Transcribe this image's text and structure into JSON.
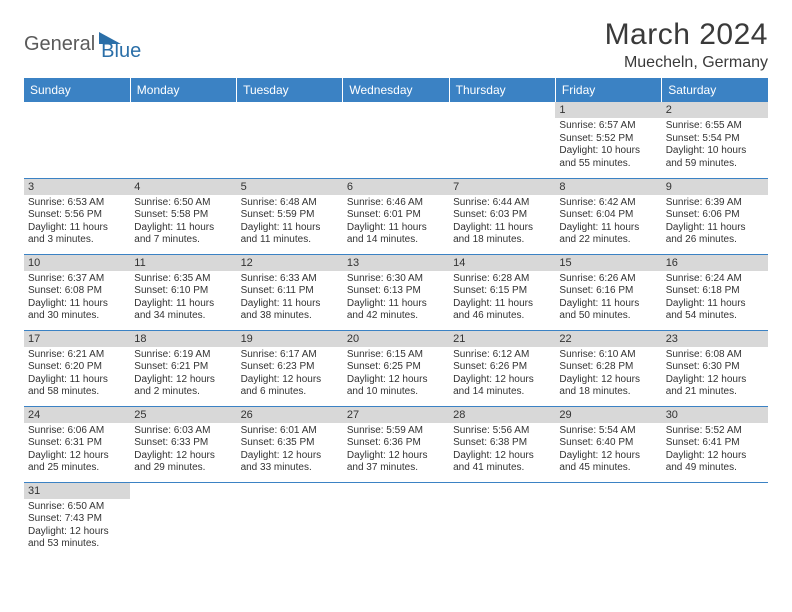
{
  "logo": {
    "word1": "General",
    "word2": "Blue",
    "shape_color": "#2b6fa8",
    "text1_color": "#5a5a5a",
    "text2_color": "#2b6fa8"
  },
  "title": "March 2024",
  "location": "Muecheln, Germany",
  "header_bg": "#3b82c4",
  "header_fg": "#ffffff",
  "daynum_bg": "#d8d8d8",
  "border_color": "#3b82c4",
  "text_color": "#333333",
  "font_size_title": 30,
  "font_size_location": 16,
  "font_size_header": 12,
  "font_size_daynum": 11,
  "font_size_body": 10,
  "weekdays": [
    "Sunday",
    "Monday",
    "Tuesday",
    "Wednesday",
    "Thursday",
    "Friday",
    "Saturday"
  ],
  "weeks": [
    [
      null,
      null,
      null,
      null,
      null,
      {
        "n": "1",
        "sr": "Sunrise: 6:57 AM",
        "ss": "Sunset: 5:52 PM",
        "dl1": "Daylight: 10 hours",
        "dl2": "and 55 minutes."
      },
      {
        "n": "2",
        "sr": "Sunrise: 6:55 AM",
        "ss": "Sunset: 5:54 PM",
        "dl1": "Daylight: 10 hours",
        "dl2": "and 59 minutes."
      }
    ],
    [
      {
        "n": "3",
        "sr": "Sunrise: 6:53 AM",
        "ss": "Sunset: 5:56 PM",
        "dl1": "Daylight: 11 hours",
        "dl2": "and 3 minutes."
      },
      {
        "n": "4",
        "sr": "Sunrise: 6:50 AM",
        "ss": "Sunset: 5:58 PM",
        "dl1": "Daylight: 11 hours",
        "dl2": "and 7 minutes."
      },
      {
        "n": "5",
        "sr": "Sunrise: 6:48 AM",
        "ss": "Sunset: 5:59 PM",
        "dl1": "Daylight: 11 hours",
        "dl2": "and 11 minutes."
      },
      {
        "n": "6",
        "sr": "Sunrise: 6:46 AM",
        "ss": "Sunset: 6:01 PM",
        "dl1": "Daylight: 11 hours",
        "dl2": "and 14 minutes."
      },
      {
        "n": "7",
        "sr": "Sunrise: 6:44 AM",
        "ss": "Sunset: 6:03 PM",
        "dl1": "Daylight: 11 hours",
        "dl2": "and 18 minutes."
      },
      {
        "n": "8",
        "sr": "Sunrise: 6:42 AM",
        "ss": "Sunset: 6:04 PM",
        "dl1": "Daylight: 11 hours",
        "dl2": "and 22 minutes."
      },
      {
        "n": "9",
        "sr": "Sunrise: 6:39 AM",
        "ss": "Sunset: 6:06 PM",
        "dl1": "Daylight: 11 hours",
        "dl2": "and 26 minutes."
      }
    ],
    [
      {
        "n": "10",
        "sr": "Sunrise: 6:37 AM",
        "ss": "Sunset: 6:08 PM",
        "dl1": "Daylight: 11 hours",
        "dl2": "and 30 minutes."
      },
      {
        "n": "11",
        "sr": "Sunrise: 6:35 AM",
        "ss": "Sunset: 6:10 PM",
        "dl1": "Daylight: 11 hours",
        "dl2": "and 34 minutes."
      },
      {
        "n": "12",
        "sr": "Sunrise: 6:33 AM",
        "ss": "Sunset: 6:11 PM",
        "dl1": "Daylight: 11 hours",
        "dl2": "and 38 minutes."
      },
      {
        "n": "13",
        "sr": "Sunrise: 6:30 AM",
        "ss": "Sunset: 6:13 PM",
        "dl1": "Daylight: 11 hours",
        "dl2": "and 42 minutes."
      },
      {
        "n": "14",
        "sr": "Sunrise: 6:28 AM",
        "ss": "Sunset: 6:15 PM",
        "dl1": "Daylight: 11 hours",
        "dl2": "and 46 minutes."
      },
      {
        "n": "15",
        "sr": "Sunrise: 6:26 AM",
        "ss": "Sunset: 6:16 PM",
        "dl1": "Daylight: 11 hours",
        "dl2": "and 50 minutes."
      },
      {
        "n": "16",
        "sr": "Sunrise: 6:24 AM",
        "ss": "Sunset: 6:18 PM",
        "dl1": "Daylight: 11 hours",
        "dl2": "and 54 minutes."
      }
    ],
    [
      {
        "n": "17",
        "sr": "Sunrise: 6:21 AM",
        "ss": "Sunset: 6:20 PM",
        "dl1": "Daylight: 11 hours",
        "dl2": "and 58 minutes."
      },
      {
        "n": "18",
        "sr": "Sunrise: 6:19 AM",
        "ss": "Sunset: 6:21 PM",
        "dl1": "Daylight: 12 hours",
        "dl2": "and 2 minutes."
      },
      {
        "n": "19",
        "sr": "Sunrise: 6:17 AM",
        "ss": "Sunset: 6:23 PM",
        "dl1": "Daylight: 12 hours",
        "dl2": "and 6 minutes."
      },
      {
        "n": "20",
        "sr": "Sunrise: 6:15 AM",
        "ss": "Sunset: 6:25 PM",
        "dl1": "Daylight: 12 hours",
        "dl2": "and 10 minutes."
      },
      {
        "n": "21",
        "sr": "Sunrise: 6:12 AM",
        "ss": "Sunset: 6:26 PM",
        "dl1": "Daylight: 12 hours",
        "dl2": "and 14 minutes."
      },
      {
        "n": "22",
        "sr": "Sunrise: 6:10 AM",
        "ss": "Sunset: 6:28 PM",
        "dl1": "Daylight: 12 hours",
        "dl2": "and 18 minutes."
      },
      {
        "n": "23",
        "sr": "Sunrise: 6:08 AM",
        "ss": "Sunset: 6:30 PM",
        "dl1": "Daylight: 12 hours",
        "dl2": "and 21 minutes."
      }
    ],
    [
      {
        "n": "24",
        "sr": "Sunrise: 6:06 AM",
        "ss": "Sunset: 6:31 PM",
        "dl1": "Daylight: 12 hours",
        "dl2": "and 25 minutes."
      },
      {
        "n": "25",
        "sr": "Sunrise: 6:03 AM",
        "ss": "Sunset: 6:33 PM",
        "dl1": "Daylight: 12 hours",
        "dl2": "and 29 minutes."
      },
      {
        "n": "26",
        "sr": "Sunrise: 6:01 AM",
        "ss": "Sunset: 6:35 PM",
        "dl1": "Daylight: 12 hours",
        "dl2": "and 33 minutes."
      },
      {
        "n": "27",
        "sr": "Sunrise: 5:59 AM",
        "ss": "Sunset: 6:36 PM",
        "dl1": "Daylight: 12 hours",
        "dl2": "and 37 minutes."
      },
      {
        "n": "28",
        "sr": "Sunrise: 5:56 AM",
        "ss": "Sunset: 6:38 PM",
        "dl1": "Daylight: 12 hours",
        "dl2": "and 41 minutes."
      },
      {
        "n": "29",
        "sr": "Sunrise: 5:54 AM",
        "ss": "Sunset: 6:40 PM",
        "dl1": "Daylight: 12 hours",
        "dl2": "and 45 minutes."
      },
      {
        "n": "30",
        "sr": "Sunrise: 5:52 AM",
        "ss": "Sunset: 6:41 PM",
        "dl1": "Daylight: 12 hours",
        "dl2": "and 49 minutes."
      }
    ],
    [
      {
        "n": "31",
        "sr": "Sunrise: 6:50 AM",
        "ss": "Sunset: 7:43 PM",
        "dl1": "Daylight: 12 hours",
        "dl2": "and 53 minutes."
      },
      null,
      null,
      null,
      null,
      null,
      null
    ]
  ]
}
